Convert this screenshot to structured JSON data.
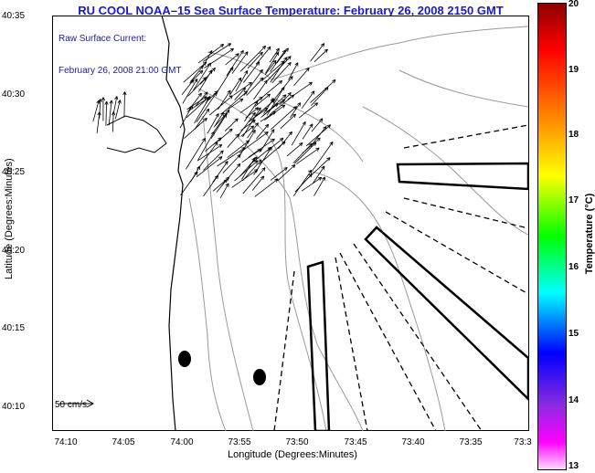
{
  "title": "RU COOL  NOAA–15  Sea Surface Temperature:  February 26, 2008 2150 GMT",
  "legend": {
    "line1": "Raw Surface Current:",
    "line2": "February 26, 2008 21:00 GMT"
  },
  "scale": {
    "label": "50 cm/s"
  },
  "axes": {
    "xlabel": "Longitude (Degrees:Minutes)",
    "ylabel": "Latitude (Degrees:Minutes)",
    "xticks": [
      "74:10",
      "74:05",
      "74:00",
      "73:55",
      "73:50",
      "73:45",
      "73:40",
      "73:35",
      "73:3"
    ],
    "yticks": [
      "40:35",
      "40:30",
      "40:25",
      "40:20",
      "40:15",
      "40:10"
    ]
  },
  "colorbar": {
    "label": "Temperature (°C)",
    "ticks": [
      "20",
      "19",
      "18",
      "17",
      "16",
      "15",
      "14",
      "13"
    ],
    "colors": {
      "top": "#8b0000",
      "red": "#ff0000",
      "orange": "#ff8c00",
      "yellow": "#ffff00",
      "green": "#00ff00",
      "cyan": "#00ffff",
      "blue": "#0000ff",
      "violet": "#8a2be2",
      "magenta": "#ff00ff",
      "bottom": "#ffe0ff"
    }
  },
  "colors": {
    "title": "#1a1acc",
    "contour": "#999999"
  }
}
